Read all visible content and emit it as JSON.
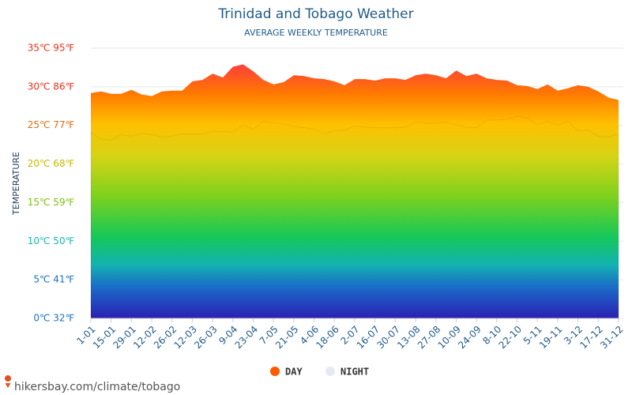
{
  "chart_data": {
    "type": "area",
    "title": "Trinidad and Tobago Weather",
    "subtitle": "AVERAGE WEEKLY TEMPERATURE",
    "y_label": "TEMPERATURE",
    "source": "hikersbay.com/climate/tobago",
    "categories": [
      "1-01",
      null,
      "15-01",
      null,
      "29-01",
      null,
      "12-02",
      null,
      "26-02",
      null,
      "12-03",
      null,
      "26-03",
      null,
      "9-04",
      null,
      "23-04",
      null,
      "7-05",
      null,
      "21-05",
      null,
      "4-06",
      null,
      "18-06",
      null,
      "2-07",
      null,
      "16-07",
      null,
      "30-07",
      null,
      "13-08",
      null,
      "27-08",
      null,
      "10-09",
      null,
      "24-09",
      null,
      "8-10",
      null,
      "22-10",
      null,
      "5-11",
      null,
      "19-11",
      null,
      "3-12",
      null,
      "17-12",
      null,
      "31-12"
    ],
    "series": [
      {
        "name": "DAY",
        "color": "#ff5a00",
        "values": [
          29.2,
          29.4,
          29.1,
          29.1,
          29.6,
          29.0,
          28.8,
          29.4,
          29.5,
          29.5,
          30.7,
          30.9,
          31.7,
          31.2,
          32.6,
          32.9,
          32.0,
          30.9,
          30.3,
          30.6,
          31.5,
          31.4,
          31.1,
          31.0,
          30.7,
          30.2,
          31.0,
          31.0,
          30.8,
          31.1,
          31.1,
          30.9,
          31.5,
          31.7,
          31.5,
          31.1,
          32.1,
          31.4,
          31.7,
          31.1,
          30.9,
          30.8,
          30.2,
          30.1,
          29.7,
          30.3,
          29.5,
          29.8,
          30.2,
          30.0,
          29.4,
          28.6,
          28.3
        ]
      },
      {
        "name": "NIGHT",
        "color": "#e4eaf1",
        "values": [
          24.1,
          23.2,
          23.1,
          23.8,
          23.6,
          24.0,
          23.8,
          23.5,
          23.6,
          23.9,
          23.9,
          23.9,
          24.2,
          24.2,
          24.1,
          25.1,
          24.5,
          25.5,
          25.3,
          25.2,
          24.9,
          24.7,
          24.5,
          23.9,
          24.3,
          24.4,
          24.9,
          24.8,
          24.7,
          24.7,
          24.7,
          24.8,
          25.4,
          25.3,
          25.3,
          25.4,
          25.1,
          24.8,
          24.7,
          25.7,
          25.7,
          25.8,
          26.2,
          26.0,
          25.1,
          25.5,
          25.0,
          25.6,
          24.3,
          24.4,
          23.6,
          23.5,
          23.9
        ]
      }
    ],
    "ylim": [
      0,
      35
    ],
    "yticks": [
      {
        "value": 0,
        "label": "0℃ 32℉"
      },
      {
        "value": 5,
        "label": "5℃ 41℉"
      },
      {
        "value": 10,
        "label": "10℃ 50℉"
      },
      {
        "value": 15,
        "label": "15℃ 59℉"
      },
      {
        "value": 20,
        "label": "20℃ 68℉"
      },
      {
        "value": 25,
        "label": "25℃ 77℉"
      },
      {
        "value": 30,
        "label": "30℃ 86℉"
      },
      {
        "value": 35,
        "label": "35℃ 95℉"
      }
    ],
    "grid": true
  }
}
